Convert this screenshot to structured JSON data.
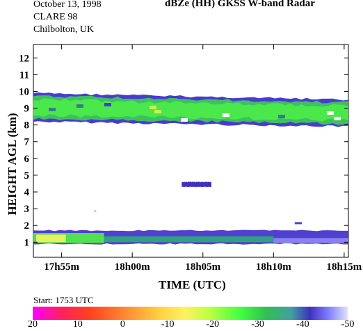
{
  "header": {
    "date": "October 13, 1998",
    "campaign": "CLARE 98",
    "site": "Chilbolton, UK",
    "title": "dBZe (HH)  GKSS  W-band Radar"
  },
  "start_label": "Start: 1753 UTC",
  "colorbar": {
    "ticks": [
      "20",
      "10",
      "0",
      "-10",
      "-20",
      "-30",
      "-40",
      "-50"
    ],
    "colors": [
      "#ff00ff",
      "#ff2060",
      "#ff4020",
      "#ff8030",
      "#ffd040",
      "#fff060",
      "#c0ff40",
      "#40ff40",
      "#30c050",
      "#40a0a0",
      "#4030c0",
      "#8080ff",
      "#e0e0ff"
    ]
  },
  "chart_data": {
    "type": "heatmap",
    "title": "dBZe (HH)  GKSS  W-band Radar",
    "xlabel": "TIME (UTC)",
    "ylabel": "HEIGHT AGL (km)",
    "x_ticks": [
      "17h55m",
      "18h00m",
      "18h05m",
      "18h10m",
      "18h15m"
    ],
    "x_tick_minutes": [
      0,
      5,
      10,
      15,
      20
    ],
    "xlim_minutes": [
      -2.0,
      20.3
    ],
    "y_ticks": [
      1,
      2,
      3,
      4,
      5,
      6,
      7,
      8,
      9,
      10,
      11,
      12
    ],
    "ylim": [
      0.1,
      12.8
    ],
    "grid": false,
    "colorbar_range_dbz": [
      20,
      -50
    ],
    "features": [
      {
        "name": "upper cloud layer",
        "t_start": -2.0,
        "t_end": 20.3,
        "base_km": [
          8.2,
          7.9
        ],
        "top_km": [
          9.9,
          9.5
        ],
        "dbz_core": -25
      },
      {
        "name": "mid-level streak",
        "t_start": 8.5,
        "t_end": 10.6,
        "base_km": 4.3,
        "top_km": 4.6,
        "dbz_core": -40
      },
      {
        "name": "low cloud layer",
        "t_start": -2.0,
        "t_end": 20.3,
        "base_km": 0.9,
        "top_km": 1.7,
        "dbz_core": -15
      },
      {
        "name": "isolated echo",
        "t_start": 16.5,
        "t_end": 17.0,
        "base_km": 2.0,
        "top_km": 2.2,
        "dbz_core": -40
      },
      {
        "name": "isolated echo",
        "t_start": 2.3,
        "t_end": 2.5,
        "base_km": 2.8,
        "top_km": 2.9,
        "dbz_core": -45
      }
    ]
  }
}
